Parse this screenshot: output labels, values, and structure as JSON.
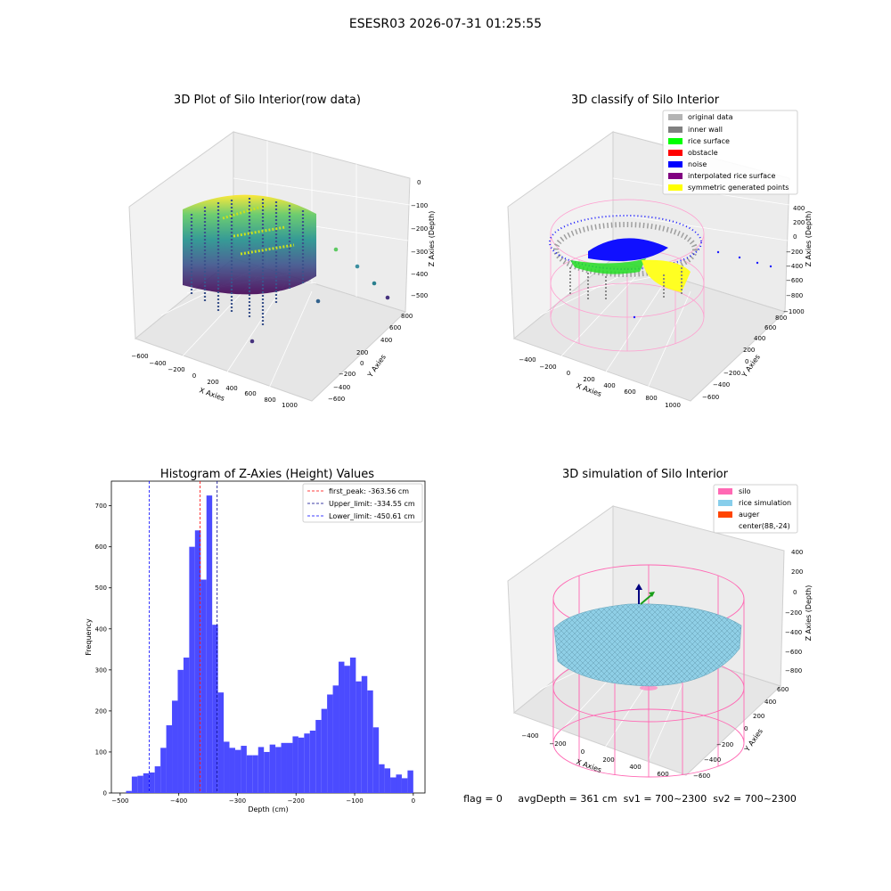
{
  "suptitle": "ESESR03 2026-07-31 01:25:55",
  "footer": "flag = 0     avgDepth = 361 cm  sv1 = 700~2300  sv2 = 700~2300",
  "chart_data": [
    {
      "type": "scatter3d",
      "title": "3D Plot of Silo Interior(row data)",
      "xlabel": "X Axies",
      "ylabel": "Y Axies",
      "zlabel": "Z Axies (Depth)",
      "xticks": [
        "−600",
        "−400",
        "−200",
        "0",
        "200",
        "400",
        "600",
        "800",
        "1000"
      ],
      "yticks": [
        "−600",
        "−400",
        "−200",
        "0",
        "200",
        "400",
        "600",
        "800"
      ],
      "zticks": [
        "0",
        "−100",
        "−200",
        "−300",
        "−400",
        "−500"
      ],
      "colormap": "viridis"
    },
    {
      "type": "scatter3d",
      "title": "3D classify of Silo Interior",
      "xticks": [
        "−400",
        "−200",
        "0",
        "200",
        "400",
        "600",
        "800",
        "1000"
      ],
      "yticks": [
        "−600",
        "−400",
        "−200",
        "0",
        "200",
        "400",
        "600",
        "800"
      ],
      "zticks": [
        "400",
        "200",
        "0",
        "−200",
        "−400",
        "−600",
        "−800",
        "−1000"
      ],
      "xlabel": "X Axies",
      "ylabel": "Y Axies",
      "zlabel": "Z Axies (Depth)",
      "legend": [
        {
          "label": "original data",
          "color": "#b4b4b4"
        },
        {
          "label": "inner wall",
          "color": "#808080"
        },
        {
          "label": "rice surface",
          "color": "#00ff00"
        },
        {
          "label": "obstacle",
          "color": "#ff0000"
        },
        {
          "label": "noise",
          "color": "#0000ff"
        },
        {
          "label": "interpolated rice surface",
          "color": "#800080"
        },
        {
          "label": "symmetric generated points",
          "color": "#ffff00"
        }
      ]
    },
    {
      "type": "bar",
      "title": "Histogram of Z-Axies (Height) Values",
      "xlabel": "Depth (cm)",
      "ylabel": "Frequency",
      "xlim": [
        -515,
        20
      ],
      "ylim": [
        0,
        760
      ],
      "xticks": [
        -500,
        -400,
        -300,
        -200,
        -100,
        0
      ],
      "xtick_labels": [
        "−500",
        "−400",
        "−300",
        "−200",
        "−100",
        "0"
      ],
      "yticks": [
        0,
        100,
        200,
        300,
        400,
        500,
        600,
        700
      ],
      "bar_color": "#4b4bff",
      "bin_start": -490,
      "bin_width": 9.8,
      "values": [
        5,
        40,
        42,
        48,
        50,
        65,
        110,
        165,
        225,
        300,
        330,
        600,
        640,
        520,
        725,
        410,
        245,
        125,
        110,
        105,
        115,
        92,
        92,
        112,
        100,
        118,
        112,
        122,
        122,
        138,
        135,
        145,
        152,
        178,
        205,
        240,
        262,
        320,
        310,
        330,
        272,
        285,
        250,
        160,
        70,
        60,
        38,
        45,
        36,
        55
      ],
      "lines": [
        {
          "label": "first_peak: -363.56 cm",
          "x": -363.56,
          "color": "#ff0000"
        },
        {
          "label": "Upper_limit: -334.55 cm",
          "x": -334.55,
          "color": "#00008b"
        },
        {
          "label": "Lower_limit: -450.61 cm",
          "x": -450.61,
          "color": "#0000ff"
        }
      ]
    },
    {
      "type": "surface3d",
      "title": "3D simulation of Silo Interior",
      "xticks": [
        "−400",
        "−200",
        "0",
        "200",
        "400",
        "600"
      ],
      "yticks": [
        "−600",
        "−400",
        "−200",
        "0",
        "200",
        "400",
        "600"
      ],
      "zticks": [
        "400",
        "200",
        "0",
        "−200",
        "−400",
        "−600",
        "−800"
      ],
      "xlabel": "X Axies",
      "ylabel": "Y Axies",
      "zlabel": "Z Axies (Depth)",
      "legend": [
        {
          "label": "silo",
          "color": "#ff69b4"
        },
        {
          "label": "rice simulation",
          "color": "#87ceeb"
        },
        {
          "label": "auger",
          "color": "#ff4500"
        },
        {
          "label": "center(88,-24)",
          "color": "#ffffff"
        }
      ]
    }
  ]
}
